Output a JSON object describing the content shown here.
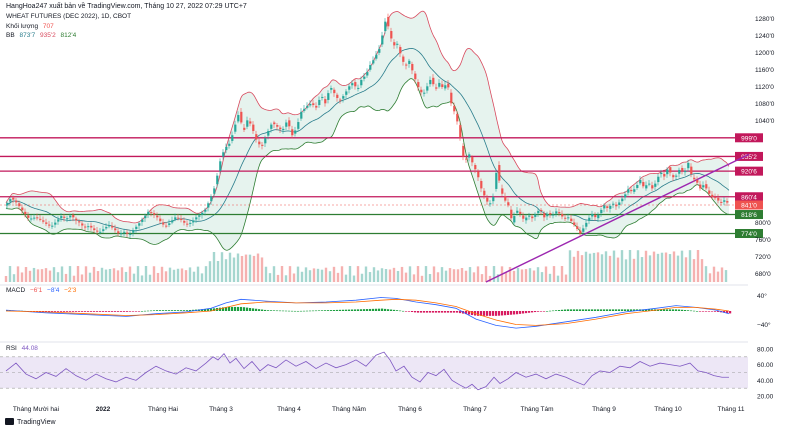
{
  "header": {
    "publisher_line": "HangHoa247 xuất bản về TradingView.com, Tháng 10 27, 2022 07:29 UTC+7",
    "symbol_line": "WHEAT FUTURES (DEC 2022), 1D, CBOT",
    "volume_label": "Khối lượng",
    "volume_value": "707",
    "bb_label": "BB",
    "bb_values": [
      "873'7",
      "935'2",
      "812'4"
    ],
    "macd_label": "MACD",
    "macd_values": [
      "−6'1",
      "−8'4",
      "−2'3"
    ],
    "rsi_label": "RSI",
    "rsi_value": "44.08"
  },
  "footer": {
    "brand": "TradingView"
  },
  "colors": {
    "up": "#26a69a",
    "down": "#ef5350",
    "bb_upper": "#d84a5e",
    "bb_lower": "#2e7d32",
    "bb_basis": "#2a7d8c",
    "bb_fill": "#e6f3ee",
    "resistance": "#c2185b",
    "support": "#2e7d32",
    "trendline": "#9c27b0",
    "macd_line": "#2962ff",
    "signal_line": "#ff6d00",
    "rsi_line": "#7e57c2",
    "rsi_band": "#ede7f6"
  },
  "chart_data": {
    "type": "candlestick",
    "price_axis": {
      "min": 660,
      "max": 1290,
      "ticks": [
        "1280'0",
        "1240'0",
        "1200'0",
        "1160'0",
        "1120'0",
        "1080'0",
        "1040'0",
        "800'0",
        "760'0",
        "720'0",
        "680'0"
      ],
      "tick_values": [
        1280,
        1240,
        1200,
        1160,
        1120,
        1080,
        1040,
        800,
        760,
        720,
        680
      ]
    },
    "time_axis": [
      "Tháng Mười hai",
      "2022",
      "Tháng Hai",
      "Tháng 3",
      "Tháng 4",
      "Tháng Năm",
      "Tháng 6",
      "Tháng 7",
      "Tháng Tám",
      "Tháng 9",
      "Tháng 10",
      "Tháng 11"
    ],
    "price_path": [
      [
        0,
        840
      ],
      [
        6,
        858
      ],
      [
        12,
        845
      ],
      [
        18,
        825
      ],
      [
        24,
        808
      ],
      [
        30,
        812
      ],
      [
        36,
        805
      ],
      [
        42,
        795
      ],
      [
        46,
        790
      ],
      [
        51,
        802
      ],
      [
        56,
        815
      ],
      [
        61,
        808
      ],
      [
        66,
        818
      ],
      [
        70,
        806
      ],
      [
        74,
        800
      ],
      [
        79,
        788
      ],
      [
        84,
        792
      ],
      [
        89,
        782
      ],
      [
        94,
        776
      ],
      [
        99,
        786
      ],
      [
        104,
        794
      ],
      [
        109,
        784
      ],
      [
        114,
        772
      ],
      [
        119,
        778
      ],
      [
        124,
        770
      ],
      [
        128,
        782
      ],
      [
        133,
        795
      ],
      [
        138,
        810
      ],
      [
        143,
        825
      ],
      [
        147,
        822
      ],
      [
        152,
        812
      ],
      [
        156,
        800
      ],
      [
        160,
        790
      ],
      [
        165,
        800
      ],
      [
        170,
        812
      ],
      [
        175,
        808
      ],
      [
        181,
        795
      ],
      [
        186,
        800
      ],
      [
        191,
        812
      ],
      [
        195,
        818
      ],
      [
        200,
        830
      ],
      [
        205,
        855
      ],
      [
        209,
        880
      ],
      [
        212,
        910
      ],
      [
        216,
        955
      ],
      [
        220,
        975
      ],
      [
        224,
        985
      ],
      [
        227,
        1005
      ],
      [
        230,
        1030
      ],
      [
        234,
        1060
      ],
      [
        238,
        1010
      ],
      [
        242,
        1040
      ],
      [
        246,
        1030
      ],
      [
        250,
        1000
      ],
      [
        253,
        985
      ],
      [
        257,
        980
      ],
      [
        262,
        1010
      ],
      [
        267,
        1035
      ],
      [
        272,
        1025
      ],
      [
        277,
        1015
      ],
      [
        282,
        1040
      ],
      [
        287,
        1005
      ],
      [
        291,
        1020
      ],
      [
        296,
        1060
      ],
      [
        301,
        1072
      ],
      [
        306,
        1080
      ],
      [
        311,
        1070
      ],
      [
        316,
        1100
      ],
      [
        320,
        1080
      ],
      [
        325,
        1120
      ],
      [
        329,
        1104
      ],
      [
        334,
        1085
      ],
      [
        339,
        1100
      ],
      [
        344,
        1120
      ],
      [
        348,
        1130
      ],
      [
        352,
        1110
      ],
      [
        356,
        1135
      ],
      [
        361,
        1148
      ],
      [
        365,
        1170
      ],
      [
        369,
        1185
      ],
      [
        374,
        1208
      ],
      [
        378,
        1250
      ],
      [
        381,
        1283
      ],
      [
        384,
        1250
      ],
      [
        388,
        1215
      ],
      [
        392,
        1220
      ],
      [
        396,
        1190
      ],
      [
        400,
        1165
      ],
      [
        404,
        1180
      ],
      [
        408,
        1150
      ],
      [
        411,
        1130
      ],
      [
        414,
        1112
      ],
      [
        418,
        1100
      ],
      [
        422,
        1120
      ],
      [
        426,
        1140
      ],
      [
        430,
        1110
      ],
      [
        434,
        1128
      ],
      [
        438,
        1115
      ],
      [
        442,
        1130
      ],
      [
        446,
        1080
      ],
      [
        450,
        1055
      ],
      [
        454,
        1020
      ],
      [
        457,
        960
      ],
      [
        460,
        945
      ],
      [
        464,
        960
      ],
      [
        468,
        935
      ],
      [
        472,
        915
      ],
      [
        476,
        880
      ],
      [
        480,
        858
      ],
      [
        484,
        840
      ],
      [
        488,
        860
      ],
      [
        492,
        935
      ],
      [
        495,
        880
      ],
      [
        499,
        855
      ],
      [
        503,
        840
      ],
      [
        507,
        800
      ],
      [
        511,
        830
      ],
      [
        515,
        820
      ],
      [
        519,
        805
      ],
      [
        523,
        818
      ],
      [
        527,
        810
      ],
      [
        531,
        822
      ],
      [
        535,
        832
      ],
      [
        539,
        812
      ],
      [
        543,
        822
      ],
      [
        547,
        816
      ],
      [
        551,
        826
      ],
      [
        555,
        820
      ],
      [
        559,
        808
      ],
      [
        563,
        812
      ],
      [
        567,
        800
      ],
      [
        571,
        788
      ],
      [
        575,
        774
      ],
      [
        579,
        790
      ],
      [
        583,
        808
      ],
      [
        587,
        820
      ],
      [
        591,
        810
      ],
      [
        595,
        826
      ],
      [
        599,
        840
      ],
      [
        603,
        832
      ],
      [
        607,
        846
      ],
      [
        611,
        838
      ],
      [
        615,
        850
      ],
      [
        619,
        862
      ],
      [
        623,
        878
      ],
      [
        627,
        872
      ],
      [
        631,
        884
      ],
      [
        635,
        900
      ],
      [
        639,
        880
      ],
      [
        643,
        895
      ],
      [
        647,
        880
      ],
      [
        651,
        895
      ],
      [
        655,
        920
      ],
      [
        659,
        908
      ],
      [
        663,
        930
      ],
      [
        667,
        905
      ],
      [
        671,
        910
      ],
      [
        675,
        928
      ],
      [
        679,
        915
      ],
      [
        683,
        940
      ],
      [
        687,
        905
      ],
      [
        691,
        898
      ],
      [
        695,
        880
      ],
      [
        699,
        890
      ],
      [
        703,
        870
      ],
      [
        707,
        860
      ],
      [
        711,
        858
      ],
      [
        715,
        845
      ],
      [
        719,
        852
      ],
      [
        723,
        845
      ]
    ],
    "horizontal_levels": [
      {
        "price": 999.0,
        "label": "999'0",
        "kind": "resistance"
      },
      {
        "price": 955.2,
        "label": "955'2",
        "kind": "resistance"
      },
      {
        "price": 920.6,
        "label": "920'6",
        "kind": "resistance"
      },
      {
        "price": 860.4,
        "label": "860'4",
        "kind": "resistance"
      },
      {
        "price": 841.0,
        "label": "841'0",
        "kind": "last"
      },
      {
        "price": 818.6,
        "label": "818'6",
        "kind": "support"
      },
      {
        "price": 774.0,
        "label": "774'0",
        "kind": "support"
      }
    ],
    "macd_axis_ticks": [
      "40°",
      "−40°"
    ],
    "rsi_axis_ticks": [
      "80.00",
      "60.00",
      "40.00",
      "20.00"
    ],
    "rsi_axis_values": [
      80,
      60,
      40,
      20
    ],
    "rsi_band": [
      30,
      70
    ],
    "rsi_path": [
      [
        0,
        52
      ],
      [
        10,
        62
      ],
      [
        20,
        48
      ],
      [
        30,
        42
      ],
      [
        40,
        50
      ],
      [
        50,
        45
      ],
      [
        60,
        55
      ],
      [
        70,
        46
      ],
      [
        80,
        40
      ],
      [
        90,
        48
      ],
      [
        100,
        42
      ],
      [
        110,
        38
      ],
      [
        120,
        44
      ],
      [
        130,
        40
      ],
      [
        140,
        50
      ],
      [
        150,
        58
      ],
      [
        160,
        52
      ],
      [
        170,
        48
      ],
      [
        180,
        56
      ],
      [
        190,
        52
      ],
      [
        200,
        62
      ],
      [
        207,
        70
      ],
      [
        212,
        66
      ],
      [
        218,
        74
      ],
      [
        224,
        62
      ],
      [
        230,
        68
      ],
      [
        238,
        55
      ],
      [
        246,
        64
      ],
      [
        254,
        52
      ],
      [
        262,
        60
      ],
      [
        270,
        56
      ],
      [
        280,
        66
      ],
      [
        290,
        58
      ],
      [
        300,
        64
      ],
      [
        310,
        55
      ],
      [
        320,
        62
      ],
      [
        330,
        56
      ],
      [
        340,
        60
      ],
      [
        350,
        66
      ],
      [
        360,
        58
      ],
      [
        370,
        72
      ],
      [
        378,
        76
      ],
      [
        384,
        66
      ],
      [
        390,
        52
      ],
      [
        398,
        58
      ],
      [
        406,
        44
      ],
      [
        414,
        38
      ],
      [
        422,
        50
      ],
      [
        430,
        46
      ],
      [
        438,
        54
      ],
      [
        446,
        40
      ],
      [
        454,
        34
      ],
      [
        460,
        30
      ],
      [
        466,
        35
      ],
      [
        472,
        28
      ],
      [
        480,
        32
      ],
      [
        488,
        44
      ],
      [
        494,
        36
      ],
      [
        502,
        42
      ],
      [
        510,
        50
      ],
      [
        520,
        44
      ],
      [
        530,
        48
      ],
      [
        540,
        42
      ],
      [
        550,
        48
      ],
      [
        560,
        44
      ],
      [
        570,
        38
      ],
      [
        578,
        34
      ],
      [
        586,
        46
      ],
      [
        594,
        52
      ],
      [
        604,
        50
      ],
      [
        614,
        58
      ],
      [
        624,
        56
      ],
      [
        634,
        64
      ],
      [
        644,
        58
      ],
      [
        654,
        62
      ],
      [
        664,
        60
      ],
      [
        674,
        58
      ],
      [
        684,
        62
      ],
      [
        692,
        52
      ],
      [
        700,
        50
      ],
      [
        708,
        46
      ],
      [
        716,
        44
      ],
      [
        723,
        44
      ]
    ],
    "macd_path": [
      [
        0,
        2
      ],
      [
        40,
        -4
      ],
      [
        80,
        -8
      ],
      [
        120,
        -12
      ],
      [
        150,
        -6
      ],
      [
        180,
        -2
      ],
      [
        205,
        6
      ],
      [
        220,
        18
      ],
      [
        235,
        26
      ],
      [
        260,
        22
      ],
      [
        290,
        18
      ],
      [
        320,
        20
      ],
      [
        350,
        24
      ],
      [
        375,
        30
      ],
      [
        390,
        28
      ],
      [
        410,
        20
      ],
      [
        430,
        14
      ],
      [
        450,
        6
      ],
      [
        470,
        -18
      ],
      [
        490,
        -32
      ],
      [
        510,
        -38
      ],
      [
        530,
        -34
      ],
      [
        560,
        -24
      ],
      [
        590,
        -14
      ],
      [
        620,
        -2
      ],
      [
        650,
        6
      ],
      [
        670,
        12
      ],
      [
        690,
        8
      ],
      [
        710,
        2
      ],
      [
        723,
        -6
      ]
    ],
    "signal_path": [
      [
        0,
        0
      ],
      [
        40,
        -2
      ],
      [
        80,
        -6
      ],
      [
        120,
        -10
      ],
      [
        150,
        -8
      ],
      [
        180,
        -4
      ],
      [
        205,
        0
      ],
      [
        220,
        8
      ],
      [
        235,
        16
      ],
      [
        260,
        20
      ],
      [
        290,
        18
      ],
      [
        320,
        18
      ],
      [
        350,
        20
      ],
      [
        375,
        24
      ],
      [
        390,
        26
      ],
      [
        410,
        24
      ],
      [
        430,
        18
      ],
      [
        450,
        10
      ],
      [
        470,
        -6
      ],
      [
        490,
        -20
      ],
      [
        510,
        -30
      ],
      [
        530,
        -32
      ],
      [
        560,
        -28
      ],
      [
        590,
        -18
      ],
      [
        620,
        -6
      ],
      [
        650,
        2
      ],
      [
        670,
        8
      ],
      [
        690,
        8
      ],
      [
        710,
        4
      ],
      [
        723,
        0
      ]
    ]
  }
}
